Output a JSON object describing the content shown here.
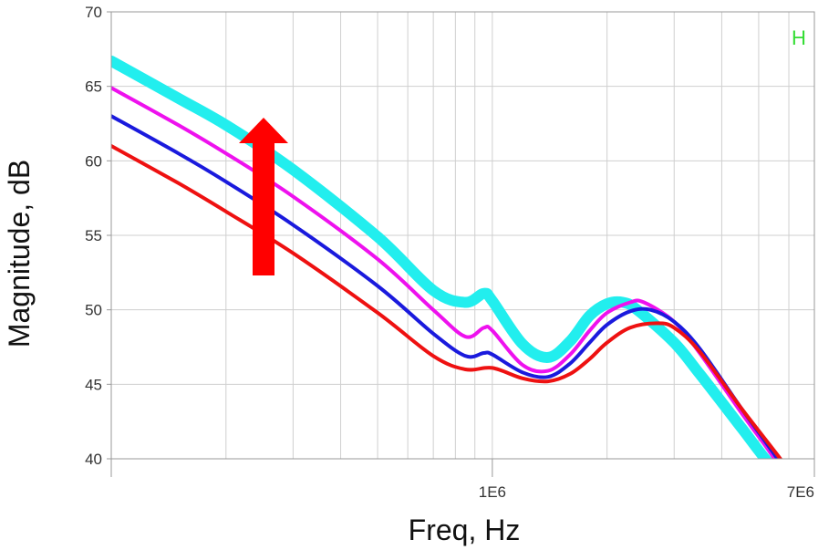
{
  "chart_data": {
    "type": "line",
    "xlabel": "Freq, Hz",
    "ylabel": "Magnitude, dB",
    "x_scale": "log",
    "xlim": [
      100000,
      7000000
    ],
    "ylim": [
      40,
      70
    ],
    "x_ticks": [
      {
        "value": 1000000,
        "label": "1E6"
      },
      {
        "value": 7000000,
        "label": "7E6"
      }
    ],
    "y_ticks": [
      40,
      45,
      50,
      55,
      60,
      65,
      70
    ],
    "grid": true,
    "legend_marker": "H",
    "legend_marker_color": "#33dd33",
    "annotation": {
      "type": "arrow",
      "direction": "up",
      "color": "#ff0000",
      "meaning": "increasing"
    },
    "series": [
      {
        "color": "#ee1111",
        "width": 4,
        "x": [
          100000,
          150000,
          200000,
          300000,
          500000,
          700000,
          850000,
          1000000,
          1200000,
          1400000,
          1600000,
          1800000,
          2000000,
          2300000,
          2700000,
          3000000,
          3500000,
          4500000,
          5700000,
          6500000
        ],
        "y": [
          61.0,
          58.5,
          56.6,
          53.8,
          49.8,
          46.9,
          46.0,
          46.1,
          45.4,
          45.2,
          45.7,
          46.7,
          47.8,
          48.8,
          49.1,
          48.8,
          47.2,
          43.4,
          40.0,
          38.0
        ]
      },
      {
        "color": "#1a1add",
        "width": 4,
        "x": [
          100000,
          150000,
          200000,
          300000,
          500000,
          700000,
          850000,
          950000,
          1000000,
          1200000,
          1400000,
          1600000,
          1800000,
          2000000,
          2300000,
          2600000,
          3000000,
          3500000,
          4500000,
          5600000,
          6500000
        ],
        "y": [
          63.0,
          60.5,
          58.6,
          55.7,
          51.6,
          48.4,
          46.9,
          47.1,
          47.0,
          45.8,
          45.5,
          46.4,
          47.8,
          49.0,
          49.9,
          50.0,
          49.2,
          47.4,
          43.4,
          40.0,
          37.5
        ]
      },
      {
        "color": "#ee11ee",
        "width": 4,
        "x": [
          100000,
          150000,
          200000,
          300000,
          500000,
          700000,
          850000,
          950000,
          1000000,
          1200000,
          1400000,
          1600000,
          1800000,
          2000000,
          2300000,
          2500000,
          3000000,
          3500000,
          4500000,
          5500000,
          6500000
        ],
        "y": [
          64.9,
          62.4,
          60.5,
          57.6,
          53.4,
          50.0,
          48.2,
          48.8,
          48.6,
          46.3,
          45.9,
          47.0,
          48.6,
          49.8,
          50.5,
          50.5,
          49.2,
          47.1,
          43.1,
          40.0,
          37.0
        ]
      },
      {
        "color": "#22eeee",
        "width": 12,
        "x": [
          100000,
          150000,
          200000,
          300000,
          500000,
          700000,
          850000,
          950000,
          1000000,
          1200000,
          1400000,
          1600000,
          1800000,
          2000000,
          2200000,
          2400000,
          3000000,
          3500000,
          4500000,
          5200000,
          6500000
        ],
        "y": [
          66.7,
          64.2,
          62.4,
          59.4,
          54.9,
          51.3,
          50.5,
          51.1,
          50.6,
          47.7,
          46.8,
          47.9,
          49.6,
          50.4,
          50.5,
          50.0,
          47.8,
          45.7,
          42.1,
          40.0,
          37.0
        ]
      }
    ]
  }
}
